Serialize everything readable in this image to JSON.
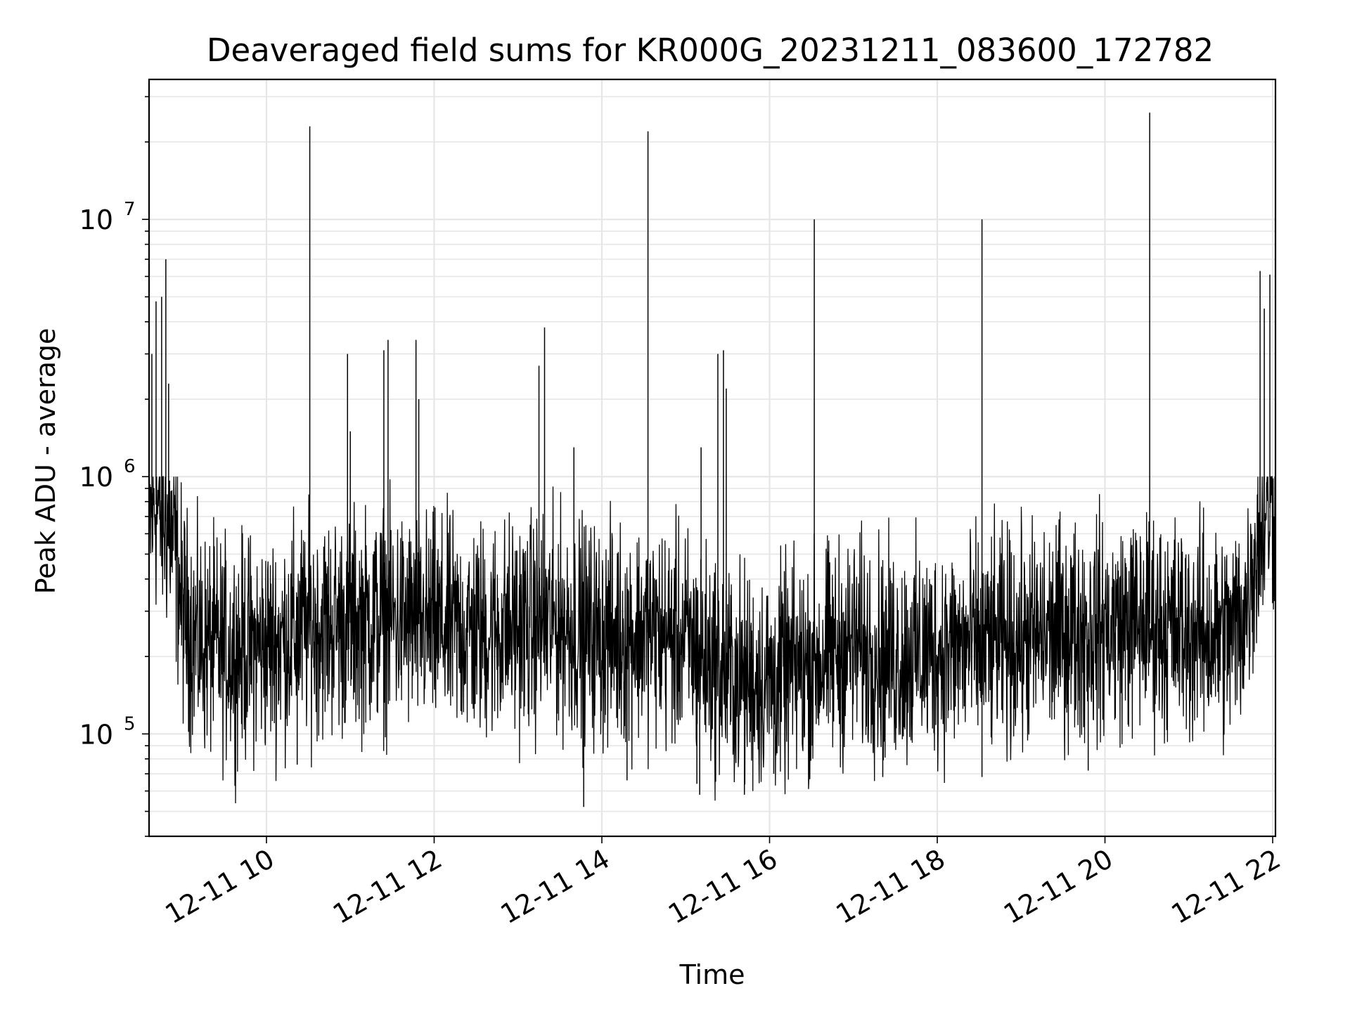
{
  "chart_data": {
    "type": "line",
    "title": "Deaveraged field sums for KR000G_20231211_083600_172782",
    "xlabel": "Time",
    "ylabel": "Peak ADU - average",
    "yscale": "log",
    "ylim": [
      40000,
      35000000
    ],
    "xlim": [
      "2023-12-11 08:36",
      "2023-12-11 22:02"
    ],
    "grid": true,
    "line_color": "#000000",
    "x_tick_labels": [
      "12-11 10",
      "12-11 12",
      "12-11 14",
      "12-11 16",
      "12-11 18",
      "12-11 20",
      "12-11 22"
    ],
    "y_tick_labels": [
      {
        "base": "10",
        "exp": "5"
      },
      {
        "base": "10",
        "exp": "6"
      },
      {
        "base": "10",
        "exp": "7"
      }
    ],
    "series": [
      {
        "points": [
          [
            "2023-12-11 08:36",
            600000
          ],
          [
            "2023-12-11 08:40",
            800000
          ],
          [
            "2023-12-11 08:45",
            700000
          ],
          [
            "2023-12-11 08:50",
            650000
          ],
          [
            "2023-12-11 08:55",
            500000
          ],
          [
            "2023-12-11 09:00",
            300000
          ],
          [
            "2023-12-11 09:10",
            230000
          ],
          [
            "2023-12-11 09:30",
            210000
          ],
          [
            "2023-12-11 10:00",
            220000
          ],
          [
            "2023-12-11 10:30",
            260000
          ],
          [
            "2023-12-11 11:00",
            270000
          ],
          [
            "2023-12-11 11:30",
            280000
          ],
          [
            "2023-12-11 12:00",
            260000
          ],
          [
            "2023-12-11 12:30",
            250000
          ],
          [
            "2023-12-11 13:00",
            260000
          ],
          [
            "2023-12-11 13:30",
            270000
          ],
          [
            "2023-12-11 14:00",
            240000
          ],
          [
            "2023-12-11 14:30",
            250000
          ],
          [
            "2023-12-11 15:00",
            230000
          ],
          [
            "2023-12-11 15:30",
            170000
          ],
          [
            "2023-12-11 16:00",
            160000
          ],
          [
            "2023-12-11 16:30",
            190000
          ],
          [
            "2023-12-11 17:00",
            220000
          ],
          [
            "2023-12-11 17:30",
            200000
          ],
          [
            "2023-12-11 18:00",
            210000
          ],
          [
            "2023-12-11 18:30",
            220000
          ],
          [
            "2023-12-11 19:00",
            230000
          ],
          [
            "2023-12-11 19:30",
            250000
          ],
          [
            "2023-12-11 20:00",
            260000
          ],
          [
            "2023-12-11 20:30",
            270000
          ],
          [
            "2023-12-11 21:00",
            250000
          ],
          [
            "2023-12-11 21:30",
            240000
          ],
          [
            "2023-12-11 21:40",
            300000
          ],
          [
            "2023-12-11 21:50",
            600000
          ],
          [
            "2023-12-11 22:00",
            800000
          ]
        ]
      }
    ],
    "spikes": [
      [
        "2023-12-11 08:38",
        3000000
      ],
      [
        "2023-12-11 08:41",
        4800000
      ],
      [
        "2023-12-11 08:45",
        5000000
      ],
      [
        "2023-12-11 08:48",
        7000000
      ],
      [
        "2023-12-11 08:50",
        2300000
      ],
      [
        "2023-12-11 10:31",
        23000000
      ],
      [
        "2023-12-11 10:58",
        3000000
      ],
      [
        "2023-12-11 11:00",
        1500000
      ],
      [
        "2023-12-11 11:24",
        3100000
      ],
      [
        "2023-12-11 11:27",
        3400000
      ],
      [
        "2023-12-11 11:47",
        3400000
      ],
      [
        "2023-12-11 11:49",
        2000000
      ],
      [
        "2023-12-11 13:15",
        2700000
      ],
      [
        "2023-12-11 13:19",
        3800000
      ],
      [
        "2023-12-11 13:40",
        1300000
      ],
      [
        "2023-12-11 14:33",
        22000000
      ],
      [
        "2023-12-11 15:11",
        1300000
      ],
      [
        "2023-12-11 15:23",
        3000000
      ],
      [
        "2023-12-11 15:27",
        3100000
      ],
      [
        "2023-12-11 15:29",
        2200000
      ],
      [
        "2023-12-11 16:32",
        10000000
      ],
      [
        "2023-12-11 18:32",
        10000000
      ],
      [
        "2023-12-11 20:32",
        26000000
      ],
      [
        "2023-12-11 21:51",
        6300000
      ],
      [
        "2023-12-11 21:54",
        4500000
      ],
      [
        "2023-12-11 21:58",
        6100000
      ]
    ],
    "dips": [
      [
        "2023-12-11 13:47",
        52000
      ],
      [
        "2023-12-11 14:18",
        66000
      ],
      [
        "2023-12-11 15:08",
        64000
      ],
      [
        "2023-12-11 15:10",
        58000
      ],
      [
        "2023-12-11 15:42",
        58000
      ],
      [
        "2023-12-11 16:03",
        70000
      ],
      [
        "2023-12-11 18:32",
        68000
      ],
      [
        "2023-12-11 10:22",
        76000
      ],
      [
        "2023-12-11 17:21",
        68000
      ],
      [
        "2023-12-11 19:48",
        72000
      ]
    ]
  }
}
